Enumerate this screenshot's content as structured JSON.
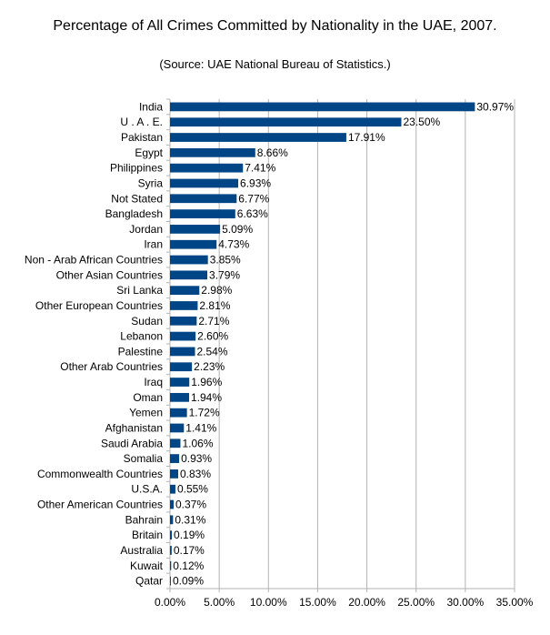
{
  "chart_data": {
    "type": "bar",
    "orientation": "horizontal",
    "title": "Percentage of All Crimes Committed by Nationality in the UAE, 2007.",
    "subtitle": "(Source: UAE National Bureau of Statistics.)",
    "xlabel": "",
    "ylabel": "",
    "xlim": [
      0,
      35
    ],
    "x_ticks": [
      "0.00%",
      "5.00%",
      "10.00%",
      "15.00%",
      "20.00%",
      "25.00%",
      "30.00%",
      "35.00%"
    ],
    "grid": "vertical",
    "legend": "none",
    "bar_color": "#004586",
    "categories": [
      "India",
      "U . A . E.",
      "Pakistan",
      "Egypt",
      "Philippines",
      "Syria",
      "Not Stated",
      "Bangladesh",
      "Jordan",
      "Iran",
      "Non - Arab African Countries",
      "Other Asian Countries",
      "Sri Lanka",
      "Other European Countries",
      "Sudan",
      "Lebanon",
      "Palestine",
      "Other Arab Countries",
      "Iraq",
      "Oman",
      "Yemen",
      "Afghanistan",
      "Saudi Arabia",
      "Somalia",
      "Commonwealth Countries",
      "U.S.A.",
      "Other American Countries",
      "Bahrain",
      "Britain",
      "Australia",
      "Kuwait",
      "Qatar"
    ],
    "values": [
      30.97,
      23.5,
      17.91,
      8.66,
      7.41,
      6.93,
      6.77,
      6.63,
      5.09,
      4.73,
      3.85,
      3.79,
      2.98,
      2.81,
      2.71,
      2.6,
      2.54,
      2.23,
      1.96,
      1.94,
      1.72,
      1.41,
      1.06,
      0.93,
      0.83,
      0.55,
      0.37,
      0.31,
      0.19,
      0.17,
      0.12,
      0.09
    ],
    "value_labels": [
      "30.97%",
      "23.50%",
      "17.91%",
      "8.66%",
      "7.41%",
      "6.93%",
      "6.77%",
      "6.63%",
      "5.09%",
      "4.73%",
      "3.85%",
      "3.79%",
      "2.98%",
      "2.81%",
      "2.71%",
      "2.60%",
      "2.54%",
      "2.23%",
      "1.96%",
      "1.94%",
      "1.72%",
      "1.41%",
      "1.06%",
      "0.93%",
      "0.83%",
      "0.55%",
      "0.37%",
      "0.31%",
      "0.19%",
      "0.17%",
      "0.12%",
      "0.09%"
    ]
  }
}
